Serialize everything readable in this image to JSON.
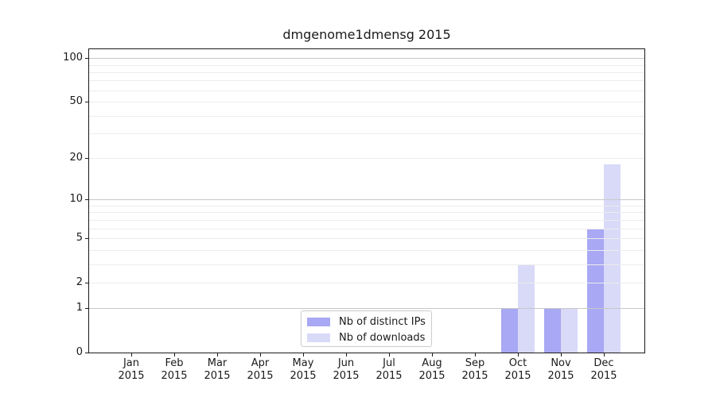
{
  "chart_data": {
    "type": "bar",
    "title": "dmgenome1dmensg 2015",
    "categories": [
      "Jan",
      "Feb",
      "Mar",
      "Apr",
      "May",
      "Jun",
      "Jul",
      "Aug",
      "Sep",
      "Oct",
      "Nov",
      "Dec"
    ],
    "year": "2015",
    "series": [
      {
        "name": "Nb of distinct IPs",
        "color": "#a8a8f5",
        "values": [
          0,
          0,
          0,
          0,
          0,
          0,
          0,
          0,
          0,
          1,
          1,
          6
        ]
      },
      {
        "name": "Nb of downloads",
        "color": "#d9d9f8",
        "values": [
          0,
          0,
          0,
          0,
          0,
          0,
          0,
          0,
          0,
          3,
          1,
          18
        ]
      }
    ],
    "xlabel": "",
    "ylabel": "",
    "yscale": "log1p",
    "ylim": [
      0,
      115
    ],
    "yticks_labeled": [
      0,
      1,
      2,
      5,
      10,
      20,
      50,
      100
    ],
    "gridlines_dark": [
      1,
      10,
      100
    ],
    "gridlines_light": [
      2,
      3,
      4,
      5,
      6,
      7,
      8,
      9,
      20,
      30,
      40,
      50,
      60,
      70,
      80,
      90
    ],
    "grid": "horizontal",
    "legend_position": "lower center inside"
  },
  "colors": {
    "axis": "#1a1a1a",
    "grid_dark": "#c8c8c8",
    "grid_light": "#ececec",
    "legend_border": "#cccccc",
    "background": "#ffffff"
  }
}
